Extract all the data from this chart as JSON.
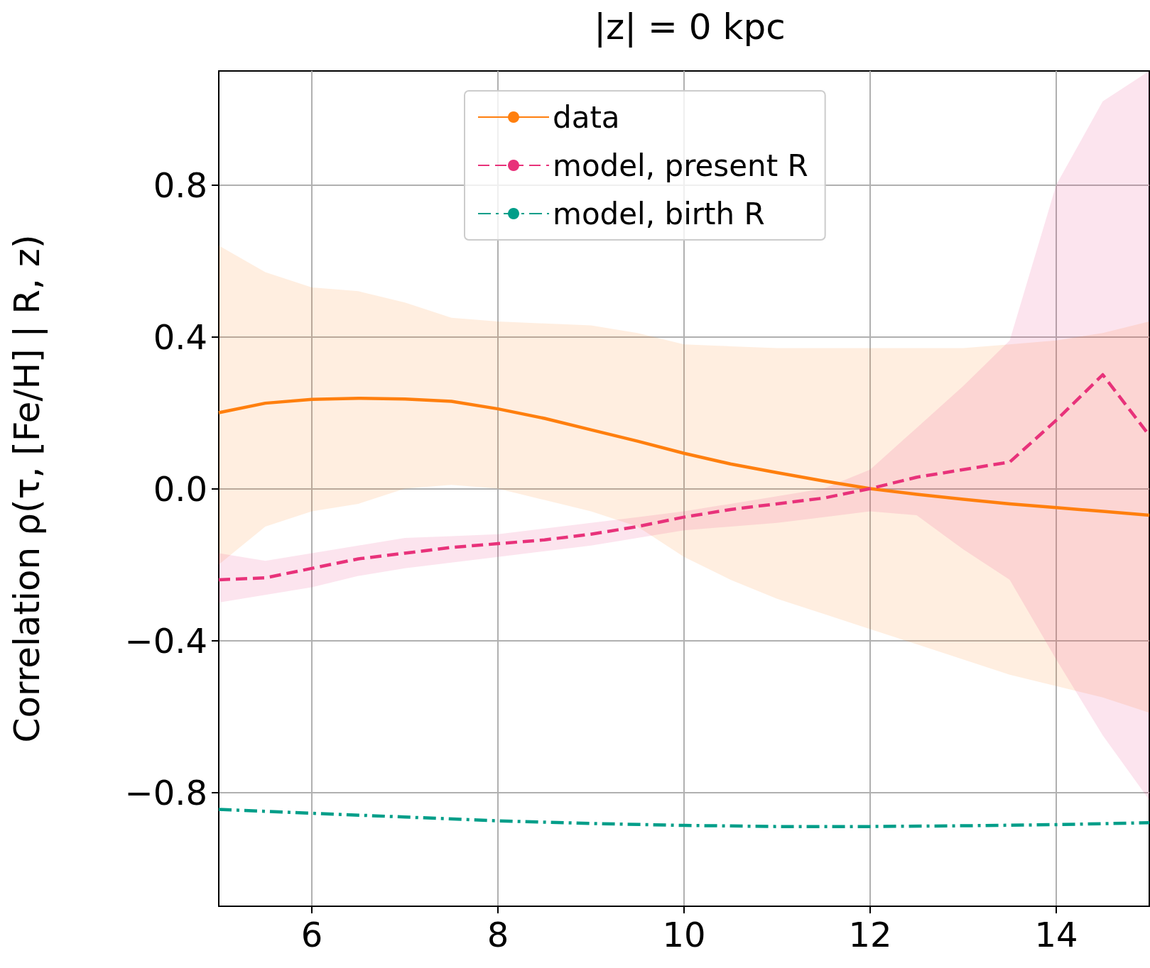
{
  "chart_data": {
    "type": "line",
    "title": "|z| = 0 kpc",
    "ylabel": "Correlation ρ(τ, [Fe/H] | R, z)",
    "xlim": [
      5,
      15
    ],
    "xticks": [
      6,
      8,
      10,
      12,
      14
    ],
    "ylim": [
      -1.1,
      1.1
    ],
    "yticks": [
      {
        "value": -0.8,
        "label": "−0.8"
      },
      {
        "value": -0.4,
        "label": "−0.4"
      },
      {
        "value": 0,
        "label": "0.0"
      },
      {
        "value": 0.4,
        "label": "0.4"
      },
      {
        "value": 0.8,
        "label": "0.8"
      }
    ],
    "grid": true,
    "legend": "top",
    "marker": "none",
    "series": [
      {
        "name": "data",
        "color": "#ff7f0e",
        "line_style": "solid",
        "x": [
          5,
          5.5,
          6,
          6.5,
          7,
          7.5,
          8,
          8.5,
          9,
          9.5,
          10,
          10.5,
          11,
          11.5,
          12,
          12.5,
          13,
          13.5,
          14,
          14.5,
          15
        ],
        "values": [
          0.2,
          0.225,
          0.235,
          0.238,
          0.236,
          0.23,
          0.21,
          0.185,
          0.155,
          0.125,
          0.093,
          0.065,
          0.042,
          0.02,
          0.0,
          -0.015,
          -0.028,
          -0.04,
          -0.05,
          -0.06,
          -0.07
        ],
        "upper": [
          0.64,
          0.57,
          0.53,
          0.52,
          0.49,
          0.45,
          0.44,
          0.435,
          0.43,
          0.41,
          0.38,
          0.375,
          0.37,
          0.37,
          0.37,
          0.37,
          0.37,
          0.38,
          0.39,
          0.41,
          0.44
        ],
        "lower": [
          -0.2,
          -0.1,
          -0.06,
          -0.04,
          0.0,
          0.01,
          0.0,
          -0.03,
          -0.06,
          -0.1,
          -0.18,
          -0.24,
          -0.29,
          -0.33,
          -0.37,
          -0.41,
          -0.45,
          -0.49,
          -0.52,
          -0.55,
          -0.59
        ]
      },
      {
        "name": "model, present R",
        "color": "#e8327a",
        "line_style": "dashed",
        "x": [
          5,
          5.5,
          6,
          6.5,
          7,
          7.5,
          8,
          8.5,
          9,
          9.5,
          10,
          10.5,
          11,
          11.5,
          12,
          12.5,
          13,
          13.5,
          14,
          14.5,
          15
        ],
        "values": [
          -0.24,
          -0.235,
          -0.21,
          -0.185,
          -0.17,
          -0.155,
          -0.145,
          -0.135,
          -0.12,
          -0.1,
          -0.075,
          -0.055,
          -0.04,
          -0.025,
          0.0,
          0.03,
          0.05,
          0.07,
          0.18,
          0.3,
          0.14
        ],
        "upper": [
          -0.17,
          -0.19,
          -0.17,
          -0.15,
          -0.13,
          -0.125,
          -0.12,
          -0.105,
          -0.09,
          -0.075,
          -0.06,
          -0.04,
          -0.02,
          0.0,
          0.05,
          0.16,
          0.27,
          0.39,
          0.8,
          1.02,
          1.1
        ],
        "lower": [
          -0.3,
          -0.28,
          -0.26,
          -0.23,
          -0.21,
          -0.195,
          -0.18,
          -0.165,
          -0.15,
          -0.13,
          -0.11,
          -0.1,
          -0.09,
          -0.075,
          -0.06,
          -0.07,
          -0.16,
          -0.24,
          -0.45,
          -0.65,
          -0.82
        ]
      },
      {
        "name": "model, birth R",
        "color": "#009e89",
        "line_style": "dashdot",
        "x": [
          5,
          6,
          7,
          8,
          9,
          10,
          11,
          12,
          13,
          14,
          15
        ],
        "values": [
          -0.845,
          -0.855,
          -0.865,
          -0.875,
          -0.882,
          -0.887,
          -0.89,
          -0.89,
          -0.888,
          -0.885,
          -0.88
        ]
      }
    ]
  }
}
